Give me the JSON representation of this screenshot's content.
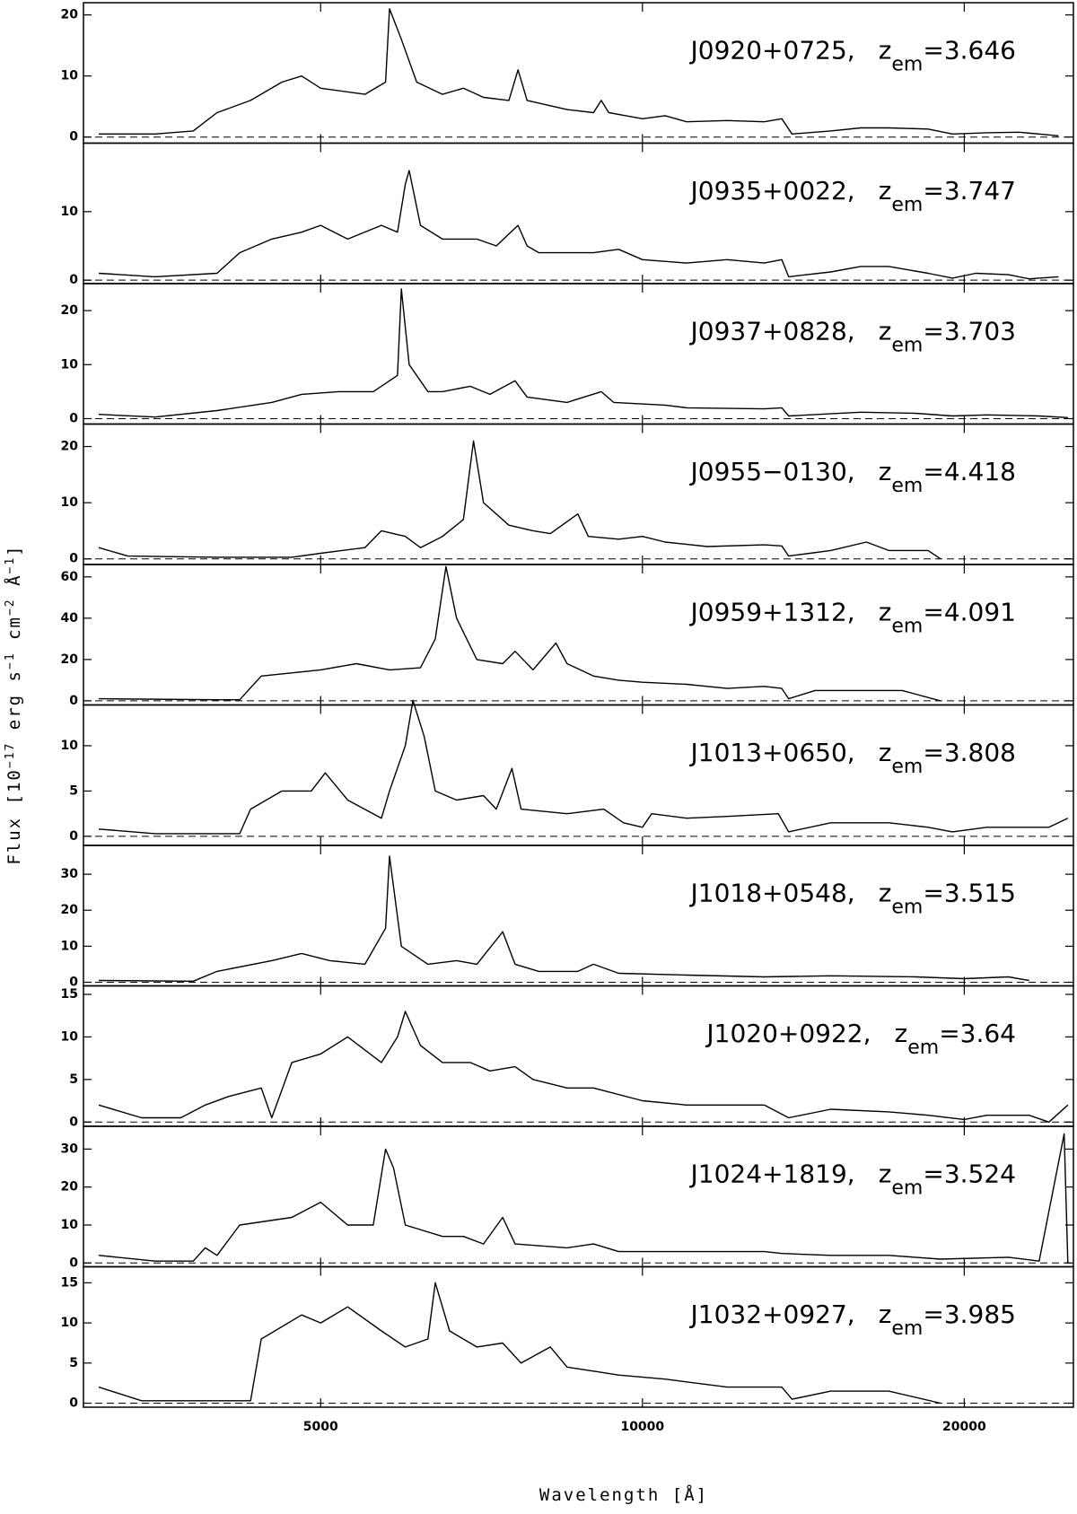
{
  "chart_data": {
    "type": "line",
    "color": "#000000",
    "xscale": "log",
    "xlim": [
      3000,
      25300
    ],
    "xticks": [
      5000,
      10000,
      20000
    ],
    "x_label": "Wavelength [Å]",
    "y_label": [
      {
        "text": "Flux [10",
        "sup": false
      },
      {
        "text": "−17",
        "sup": true
      },
      {
        "text": " erg s",
        "sup": false
      },
      {
        "text": "−1",
        "sup": true
      },
      {
        "text": " cm",
        "sup": false
      },
      {
        "text": "−2",
        "sup": true
      },
      {
        "text": " Å",
        "sup": false
      },
      {
        "text": "−1",
        "sup": true
      },
      {
        "text": "]",
        "sup": false
      }
    ],
    "separator": ",",
    "redshift_symbol": "z",
    "redshift_subscript": "em",
    "equals": "=",
    "panels": [
      {
        "name": "J0920+0725",
        "z_em": 3.646,
        "ylim": [
          -1,
          22
        ],
        "yticks": [
          0,
          10,
          20
        ],
        "x": [
          3100,
          3500,
          3800,
          4000,
          4300,
          4600,
          4800,
          5000,
          5500,
          5750,
          5800,
          5950,
          6150,
          6500,
          6800,
          7100,
          7500,
          7650,
          7800,
          8500,
          9000,
          9150,
          9300,
          10000,
          10500,
          11000,
          12000,
          13000,
          13500,
          13800,
          15000,
          16000,
          17000,
          18500,
          19500,
          21000,
          22500,
          24500
        ],
        "values": [
          0.5,
          0.5,
          1,
          4,
          6,
          9,
          10,
          8,
          7,
          9,
          21,
          16,
          9,
          7,
          8,
          6.5,
          6,
          11,
          6,
          4.5,
          4,
          6,
          4,
          3,
          3.5,
          2.5,
          2.7,
          2.5,
          3,
          0.5,
          1,
          1.5,
          1.5,
          1.3,
          0.5,
          0.7,
          0.8,
          0.2
        ]
      },
      {
        "name": "J0935+0022",
        "z_em": 3.747,
        "ylim": [
          -0.5,
          20
        ],
        "yticks": [
          0,
          10
        ],
        "x": [
          3100,
          3500,
          4000,
          4200,
          4500,
          4800,
          5000,
          5300,
          5700,
          5900,
          6000,
          6050,
          6200,
          6500,
          7000,
          7300,
          7650,
          7800,
          8000,
          9000,
          9500,
          10000,
          11000,
          12000,
          13000,
          13500,
          13700,
          15000,
          16000,
          17000,
          18500,
          19500,
          20500,
          22000,
          23000,
          24500
        ],
        "values": [
          1,
          0.5,
          1,
          4,
          6,
          7,
          8,
          6,
          8,
          7,
          14,
          16,
          8,
          6,
          6,
          5,
          8,
          5,
          4,
          4,
          4.5,
          3,
          2.5,
          3,
          2.5,
          3,
          0.5,
          1.2,
          2,
          2,
          1,
          0.3,
          1,
          0.8,
          0.2,
          0.5
        ]
      },
      {
        "name": "J0937+0828",
        "z_em": 3.703,
        "ylim": [
          -1,
          25
        ],
        "yticks": [
          0,
          10,
          20
        ],
        "x": [
          3100,
          3500,
          4000,
          4500,
          4800,
          5200,
          5600,
          5900,
          5950,
          6050,
          6300,
          6500,
          6900,
          7200,
          7600,
          7800,
          8500,
          9150,
          9400,
          10500,
          11000,
          13000,
          13500,
          13700,
          16000,
          18000,
          19500,
          21000,
          23500,
          25000
        ],
        "values": [
          0.8,
          0.3,
          1.5,
          3,
          4.5,
          5,
          5,
          8,
          24,
          10,
          5,
          5,
          6,
          4.5,
          7,
          4,
          3,
          5,
          3,
          2.5,
          2,
          1.8,
          2,
          0.5,
          1.2,
          1,
          0.5,
          0.7,
          0.5,
          0.2
        ]
      },
      {
        "name": "J0955−0130",
        "z_em": 4.418,
        "ylim": [
          -1,
          24
        ],
        "yticks": [
          0,
          10,
          20
        ],
        "x": [
          3100,
          3300,
          4000,
          4700,
          5000,
          5500,
          5700,
          6000,
          6200,
          6500,
          6800,
          6950,
          7100,
          7500,
          7900,
          8200,
          8700,
          8900,
          9500,
          10000,
          10500,
          11500,
          13000,
          13500,
          13700,
          15000,
          16200,
          17000,
          18500,
          19000
        ],
        "values": [
          2,
          0.5,
          0.3,
          0.3,
          1,
          2,
          5,
          4,
          2,
          4,
          7,
          21,
          10,
          6,
          5,
          4.5,
          8,
          4,
          3.5,
          4,
          3,
          2.2,
          2.5,
          2.3,
          0.5,
          1.5,
          3,
          1.5,
          1.5,
          0
        ]
      },
      {
        "name": "J0959+1312",
        "z_em": 4.091,
        "ylim": [
          -2,
          66
        ],
        "yticks": [
          0,
          20,
          40,
          60
        ],
        "x": [
          3100,
          4000,
          4200,
          4400,
          5000,
          5400,
          5800,
          6200,
          6400,
          6550,
          6700,
          7000,
          7400,
          7600,
          7900,
          8300,
          8500,
          9000,
          9500,
          10000,
          11000,
          12000,
          13000,
          13500,
          13700,
          14500,
          16000,
          17500,
          19000
        ],
        "values": [
          1,
          0.5,
          0.5,
          12,
          15,
          18,
          15,
          16,
          30,
          65,
          40,
          20,
          18,
          24,
          15,
          28,
          18,
          12,
          10,
          9,
          8,
          6,
          7,
          6,
          1,
          5,
          5,
          5,
          0
        ]
      },
      {
        "name": "J1013+0650",
        "z_em": 3.808,
        "ylim": [
          -1,
          14.5
        ],
        "yticks": [
          0,
          5,
          10
        ],
        "x": [
          3100,
          3500,
          4200,
          4300,
          4600,
          4900,
          5050,
          5300,
          5700,
          5800,
          6000,
          6100,
          6250,
          6400,
          6700,
          7100,
          7300,
          7550,
          7700,
          8500,
          9200,
          9600,
          10000,
          10200,
          11000,
          12000,
          13400,
          13700,
          15000,
          17000,
          18500,
          19500,
          21000,
          24000,
          25000
        ],
        "values": [
          0.8,
          0.3,
          0.3,
          3,
          5,
          5,
          7,
          4,
          2,
          5,
          10,
          15,
          11,
          5,
          4,
          4.5,
          3,
          7.5,
          3,
          2.5,
          3,
          1.5,
          1,
          2.5,
          2,
          2.2,
          2.5,
          0.5,
          1.5,
          1.5,
          1,
          0.5,
          1,
          1,
          2
        ]
      },
      {
        "name": "J1018+0548",
        "z_em": 3.515,
        "ylim": [
          -1,
          38
        ],
        "yticks": [
          0,
          10,
          20,
          30
        ],
        "x": [
          3100,
          3800,
          4000,
          4500,
          4800,
          5100,
          5500,
          5750,
          5800,
          5950,
          6300,
          6700,
          7000,
          7400,
          7600,
          8000,
          8700,
          9000,
          9500,
          11000,
          13000,
          15000,
          18000,
          20000,
          22000,
          23000
        ],
        "values": [
          0.5,
          0.3,
          3,
          6,
          8,
          6,
          5,
          15,
          35,
          10,
          5,
          6,
          5,
          14,
          5,
          3,
          3,
          5,
          2.5,
          2,
          1.5,
          1.8,
          1.5,
          1,
          1.5,
          0.5
        ]
      },
      {
        "name": "J1020+0922",
        "z_em": 3.64,
        "ylim": [
          -0.5,
          16
        ],
        "yticks": [
          0,
          5,
          10,
          15
        ],
        "x": [
          3100,
          3400,
          3700,
          3900,
          4100,
          4400,
          4500,
          4700,
          5000,
          5300,
          5700,
          5900,
          6000,
          6200,
          6500,
          6900,
          7200,
          7600,
          7900,
          8500,
          9000,
          10000,
          11000,
          12000,
          13000,
          13700,
          15000,
          17000,
          18500,
          20000,
          21000,
          23000,
          24000,
          25000
        ],
        "values": [
          2,
          0.5,
          0.5,
          2,
          3,
          4,
          0.5,
          7,
          8,
          10,
          7,
          10,
          13,
          9,
          7,
          7,
          6,
          6.5,
          5,
          4,
          4,
          2.5,
          2,
          2,
          2,
          0.5,
          1.5,
          1.2,
          0.8,
          0.3,
          0.8,
          0.8,
          0,
          2
        ]
      },
      {
        "name": "J1024+1819",
        "z_em": 3.524,
        "ylim": [
          -1,
          36
        ],
        "yticks": [
          0,
          10,
          20,
          30
        ],
        "x": [
          3100,
          3500,
          3800,
          3900,
          4000,
          4200,
          4700,
          5000,
          5300,
          5600,
          5750,
          5850,
          6000,
          6500,
          6800,
          7100,
          7400,
          7600,
          8500,
          9000,
          9500,
          11000,
          13000,
          13500,
          15000,
          17000,
          19000,
          22000,
          23500,
          24800,
          25000
        ],
        "values": [
          2,
          0.5,
          0.5,
          4,
          2,
          10,
          12,
          16,
          10,
          10,
          30,
          25,
          10,
          7,
          7,
          5,
          12,
          5,
          4,
          5,
          3,
          3,
          3,
          2.5,
          2,
          2,
          1,
          1.5,
          0.5,
          34,
          0
        ]
      },
      {
        "name": "J1032+0927",
        "z_em": 3.985,
        "ylim": [
          -0.5,
          17
        ],
        "yticks": [
          0,
          5,
          10,
          15
        ],
        "x": [
          3100,
          3400,
          4300,
          4400,
          4800,
          5000,
          5300,
          5700,
          6000,
          6300,
          6400,
          6600,
          7000,
          7400,
          7700,
          8200,
          8500,
          9000,
          9500,
          10500,
          12000,
          13500,
          13800,
          15000,
          17000,
          19000
        ],
        "values": [
          2,
          0.3,
          0.3,
          8,
          11,
          10,
          12,
          9,
          7,
          8,
          15,
          9,
          7,
          7.5,
          5,
          7,
          4.5,
          4,
          3.5,
          3,
          2,
          2,
          0.5,
          1.5,
          1.5,
          0
        ]
      }
    ]
  }
}
